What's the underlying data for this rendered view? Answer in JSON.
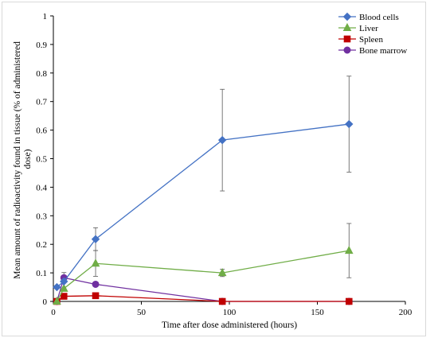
{
  "chart_data": {
    "type": "line",
    "title": "",
    "xlabel": "Time after dose administered (hours)",
    "ylabel_lines": [
      "Mean amount of radioactivity found in tissue (% of administered",
      "dose)"
    ],
    "xlim": [
      0,
      200
    ],
    "ylim": [
      0,
      1
    ],
    "xticks": [
      "0",
      "50",
      "100",
      "150",
      "200"
    ],
    "yticks": [
      "0",
      "0.1",
      "0.2",
      "0.3",
      "0.4",
      "0.5",
      "0.6",
      "0.7",
      "0.8",
      "0.9",
      "1"
    ],
    "grid": false,
    "legend_position": "top-right",
    "series": [
      {
        "name": "Blood cells",
        "color": "#4472c4",
        "marker": "diamond",
        "x": [
          2,
          6,
          24,
          96,
          168
        ],
        "y": [
          0.05,
          0.07,
          0.218,
          0.565,
          0.621
        ],
        "err": [
          0,
          0,
          0.04,
          0.178,
          0.168
        ]
      },
      {
        "name": "Liver",
        "color": "#70ad47",
        "marker": "triangle",
        "x": [
          2,
          6,
          24,
          96,
          168
        ],
        "y": [
          0.0,
          0.045,
          0.133,
          0.1,
          0.178
        ],
        "err": [
          0,
          0,
          0.045,
          0.013,
          0.095
        ]
      },
      {
        "name": "Spleen",
        "color": "#c00000",
        "marker": "square",
        "x": [
          2,
          6,
          24,
          96,
          168
        ],
        "y": [
          0.0,
          0.018,
          0.02,
          0.0,
          0.0
        ],
        "err": [
          0,
          0,
          0,
          0,
          0
        ]
      },
      {
        "name": "Bone marrow",
        "color": "#7030a0",
        "marker": "circle",
        "x": [
          2,
          6,
          24,
          96,
          168
        ],
        "y": [
          0.0,
          0.083,
          0.06,
          0.0,
          0.0
        ],
        "err": [
          0,
          0.018,
          0,
          0,
          0
        ]
      }
    ]
  }
}
